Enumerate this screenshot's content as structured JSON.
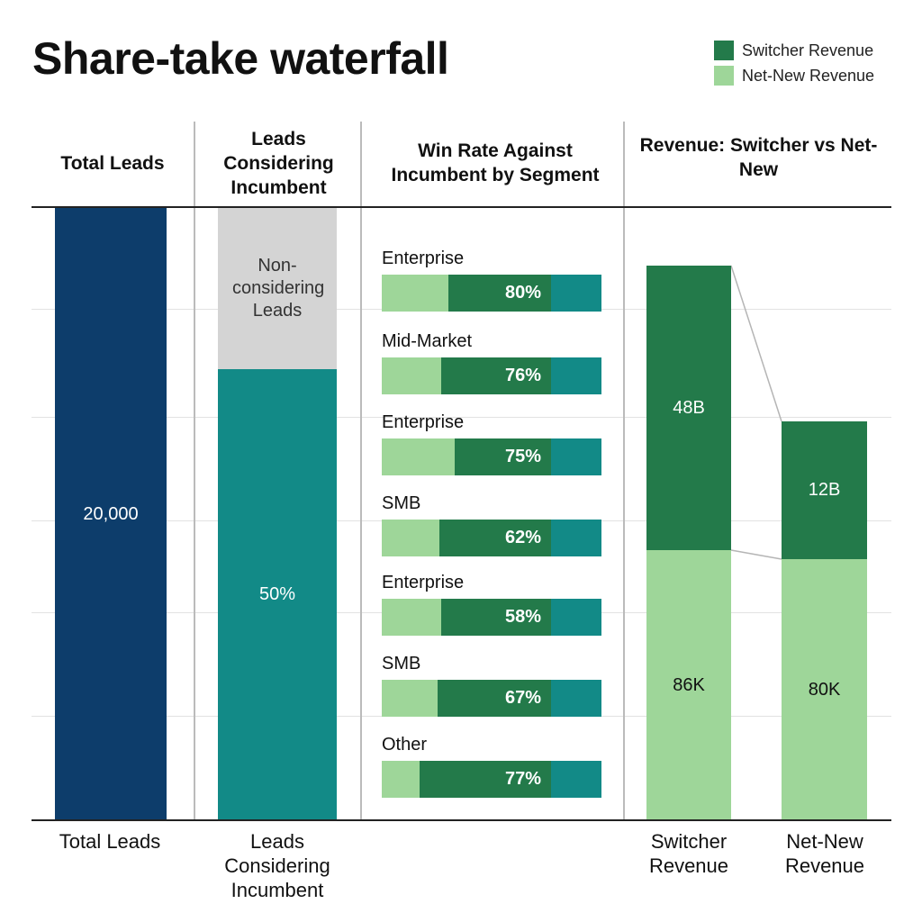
{
  "chart_data": {
    "type": "bar",
    "title": "Share-take waterfall",
    "legend": {
      "placement": "top-right",
      "entries": [
        {
          "name": "Switcher Revenue",
          "color": "#237a4a"
        },
        {
          "name": "Net-New Revenue",
          "color": "#9ed699"
        }
      ]
    },
    "grid": true,
    "panels": [
      {
        "header": "Total Leads",
        "category": "Total Leads",
        "bar_label": "20,000",
        "color": "#0d3d6b"
      },
      {
        "header": "Leads Considering Incumbent",
        "category": "Leads Considering Incumbent",
        "top_label": "Non-considering Leads",
        "bottom_label": "50%",
        "top_color": "#d4d4d4",
        "bottom_color": "#128a87"
      },
      {
        "header": "Win Rate Against Incumbent by Segment",
        "segments": [
          {
            "label": "Enterprise",
            "value": "80%"
          },
          {
            "label": "Mid-Market",
            "value": "76%"
          },
          {
            "label": "Enterprise",
            "value": "75%"
          },
          {
            "label": "SMB",
            "value": "62%"
          },
          {
            "label": "Enterprise",
            "value": "58%"
          },
          {
            "label": "SMB",
            "value": "67%"
          },
          {
            "label": "Other",
            "value": "77%"
          }
        ],
        "colors": [
          "#9ed699",
          "#237a4a",
          "#128a87"
        ]
      },
      {
        "header": "Revenue: Switcher vs Net-New",
        "bars": [
          {
            "category": "Switcher Revenue",
            "top_label": "48B",
            "bottom_label": "86K"
          },
          {
            "category": "Net-New Revenue",
            "top_label": "12B",
            "bottom_label": "80K"
          }
        ]
      }
    ]
  }
}
